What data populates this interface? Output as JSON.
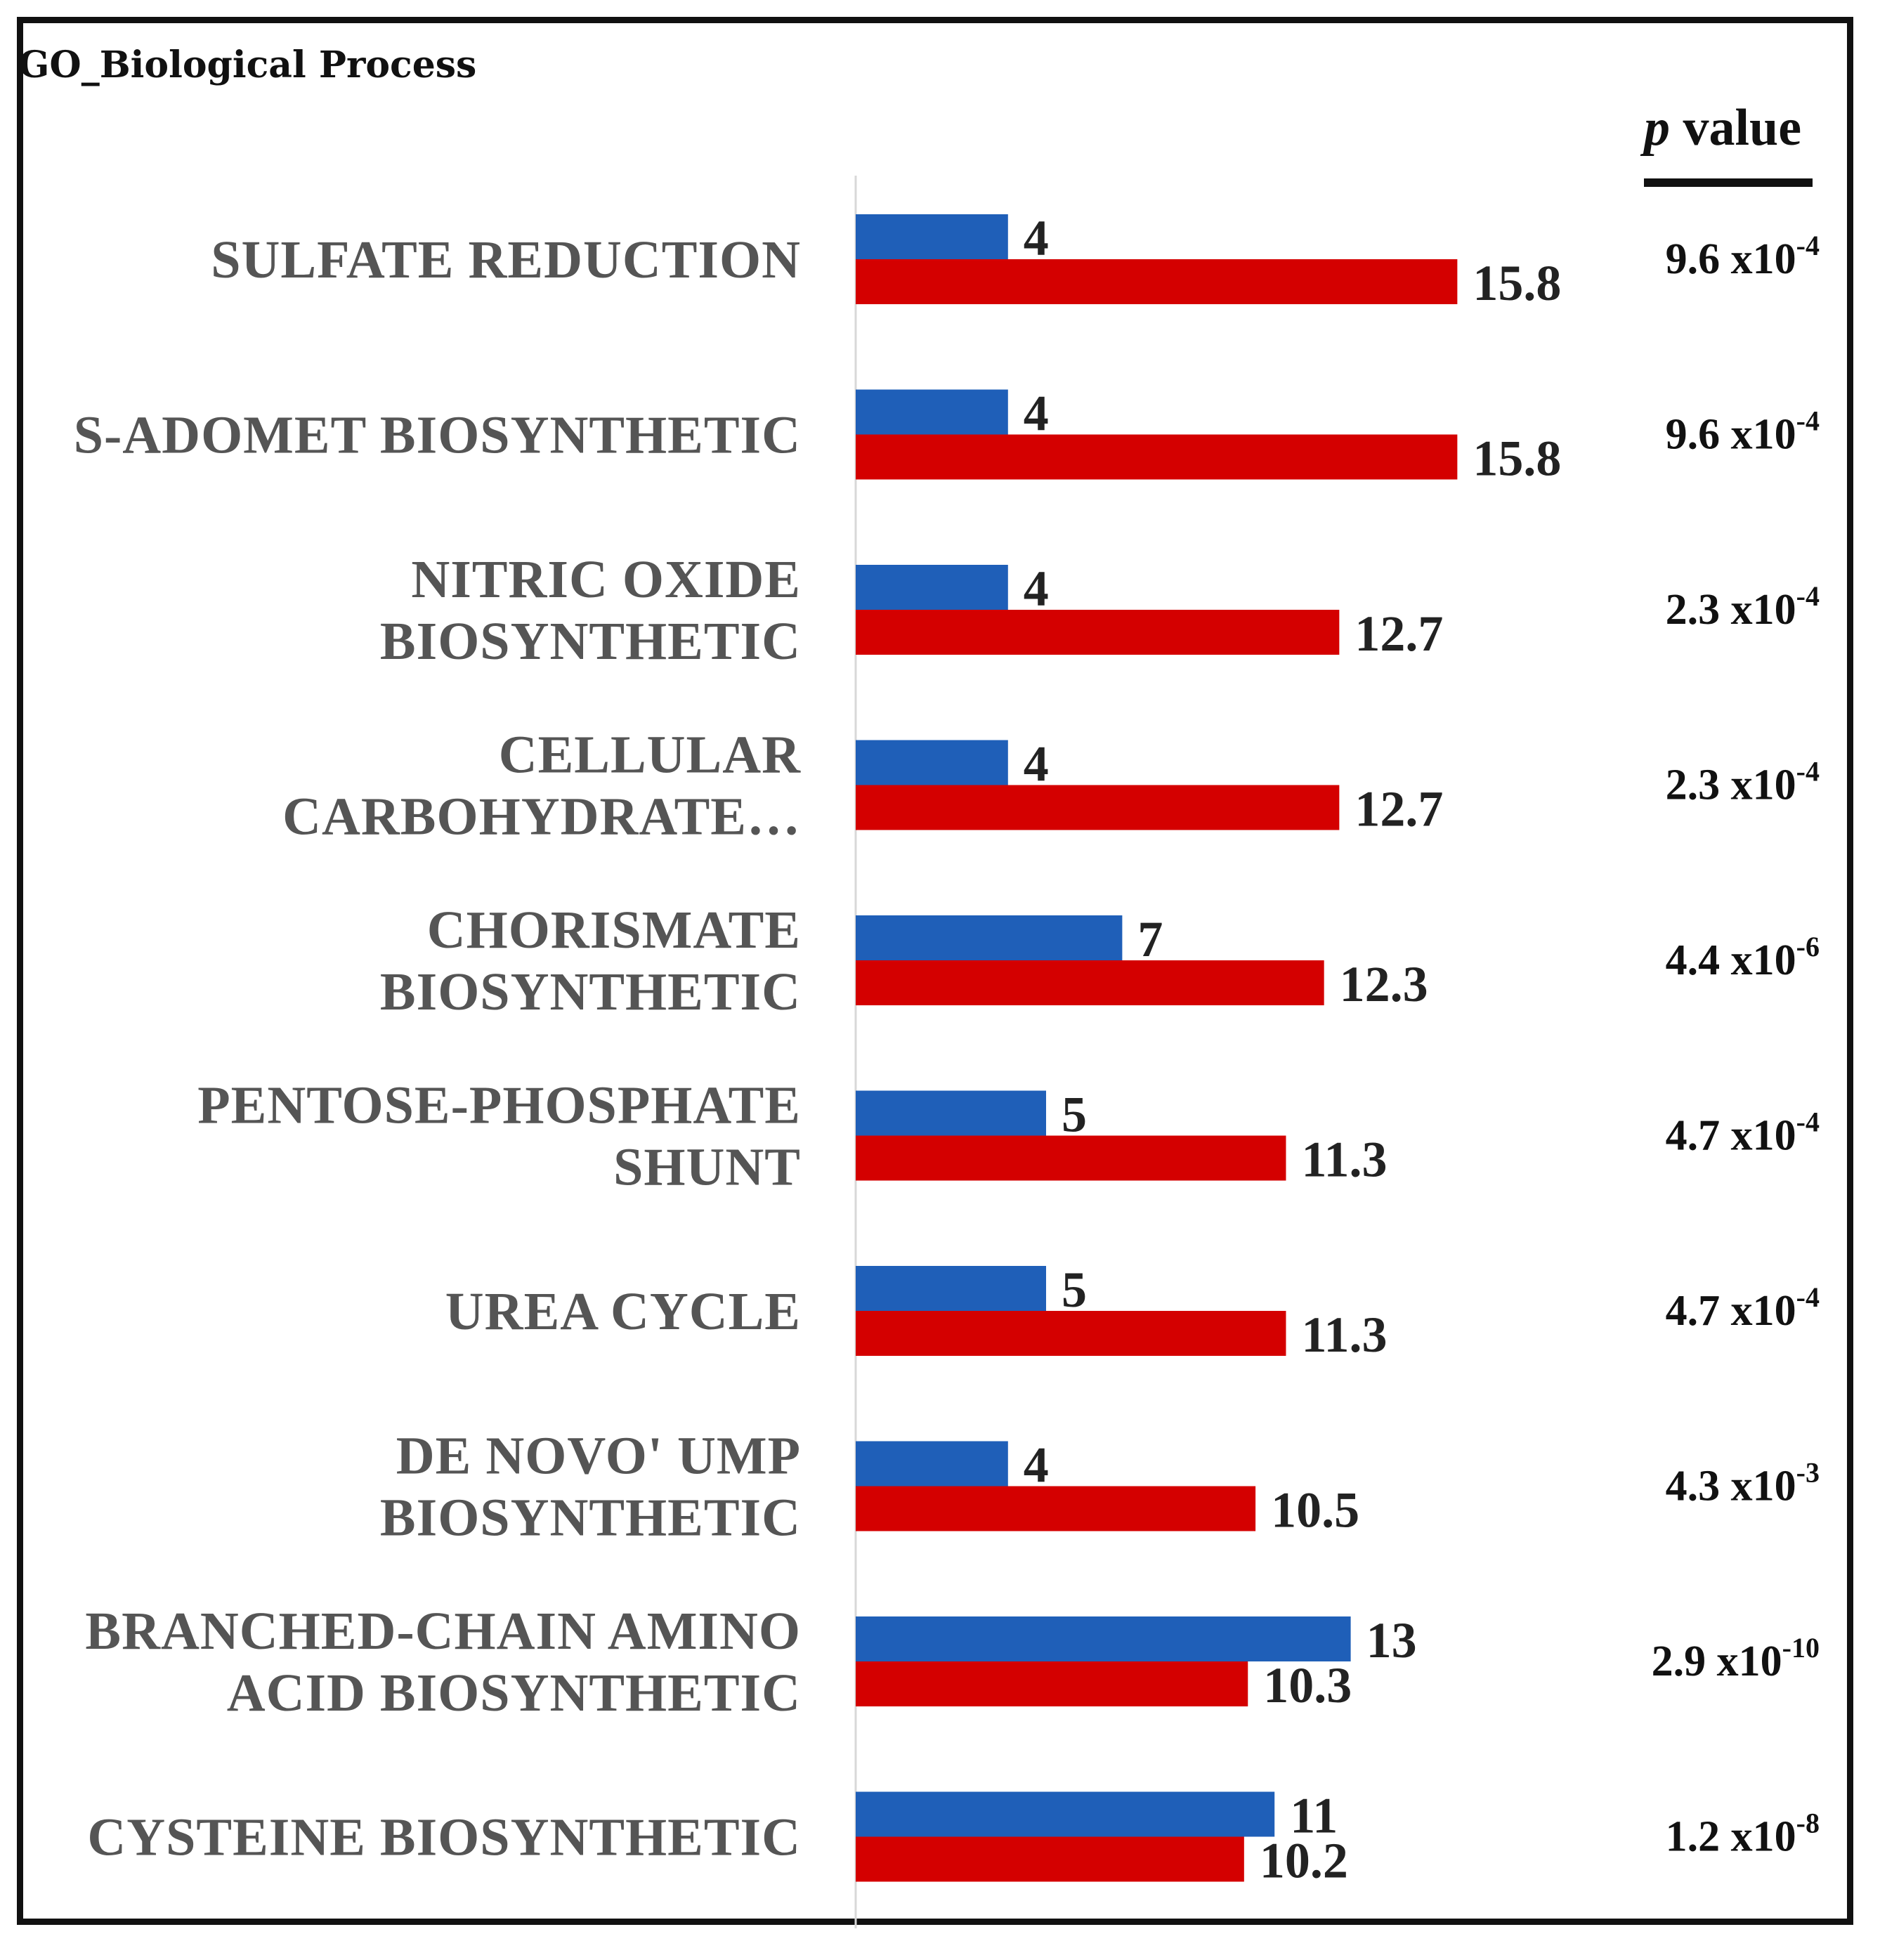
{
  "chart_data": {
    "type": "bar",
    "orientation": "horizontal",
    "title": "GO_Biological Process",
    "pvalue_header": {
      "italic": "p",
      "rest": " value"
    },
    "categories": [
      [
        "SULFATE REDUCTION"
      ],
      [
        "S-ADOMET BIOSYNTHETIC"
      ],
      [
        "NITRIC OXIDE",
        "BIOSYNTHETIC"
      ],
      [
        "CELLULAR",
        "CARBOHYDRATE…"
      ],
      [
        "CHORISMATE",
        "BIOSYNTHETIC"
      ],
      [
        "PENTOSE-PHOSPHATE",
        "SHUNT"
      ],
      [
        "UREA CYCLE"
      ],
      [
        "DE NOVO' UMP",
        "BIOSYNTHETIC"
      ],
      [
        "BRANCHED-CHAIN AMINO",
        "ACID BIOSYNTHETIC"
      ],
      [
        "CYSTEINE BIOSYNTHETIC"
      ]
    ],
    "series": [
      {
        "name": "blue",
        "color": "#1f5fb8",
        "values": [
          4,
          4,
          4,
          4,
          7,
          5,
          5,
          4,
          13,
          11
        ],
        "labels": [
          "4",
          "4",
          "4",
          "4",
          "7",
          "5",
          "5",
          "4",
          "13",
          "11"
        ]
      },
      {
        "name": "red",
        "color": "#d40000",
        "values": [
          15.8,
          15.8,
          12.7,
          12.7,
          12.3,
          11.3,
          11.3,
          10.5,
          10.3,
          10.2
        ],
        "labels": [
          "15.8",
          "15.8",
          "12.7",
          "12.7",
          "12.3",
          "11.3",
          "11.3",
          "10.5",
          "10.3",
          "10.2"
        ]
      }
    ],
    "p_values": [
      {
        "mantissa": "9.6",
        "exponent": "-4"
      },
      {
        "mantissa": "9.6",
        "exponent": "-4"
      },
      {
        "mantissa": "2.3",
        "exponent": "-4"
      },
      {
        "mantissa": "2.3",
        "exponent": "-4"
      },
      {
        "mantissa": "4.4",
        "exponent": "-6"
      },
      {
        "mantissa": "4.7",
        "exponent": "-4"
      },
      {
        "mantissa": "4.7",
        "exponent": "-4"
      },
      {
        "mantissa": "4.3",
        "exponent": "-3"
      },
      {
        "mantissa": "2.9",
        "exponent": "-10"
      },
      {
        "mantissa": "1.2",
        "exponent": "-8"
      }
    ],
    "xlim": [
      0,
      17.5
    ],
    "grid": false,
    "legend": "none"
  }
}
